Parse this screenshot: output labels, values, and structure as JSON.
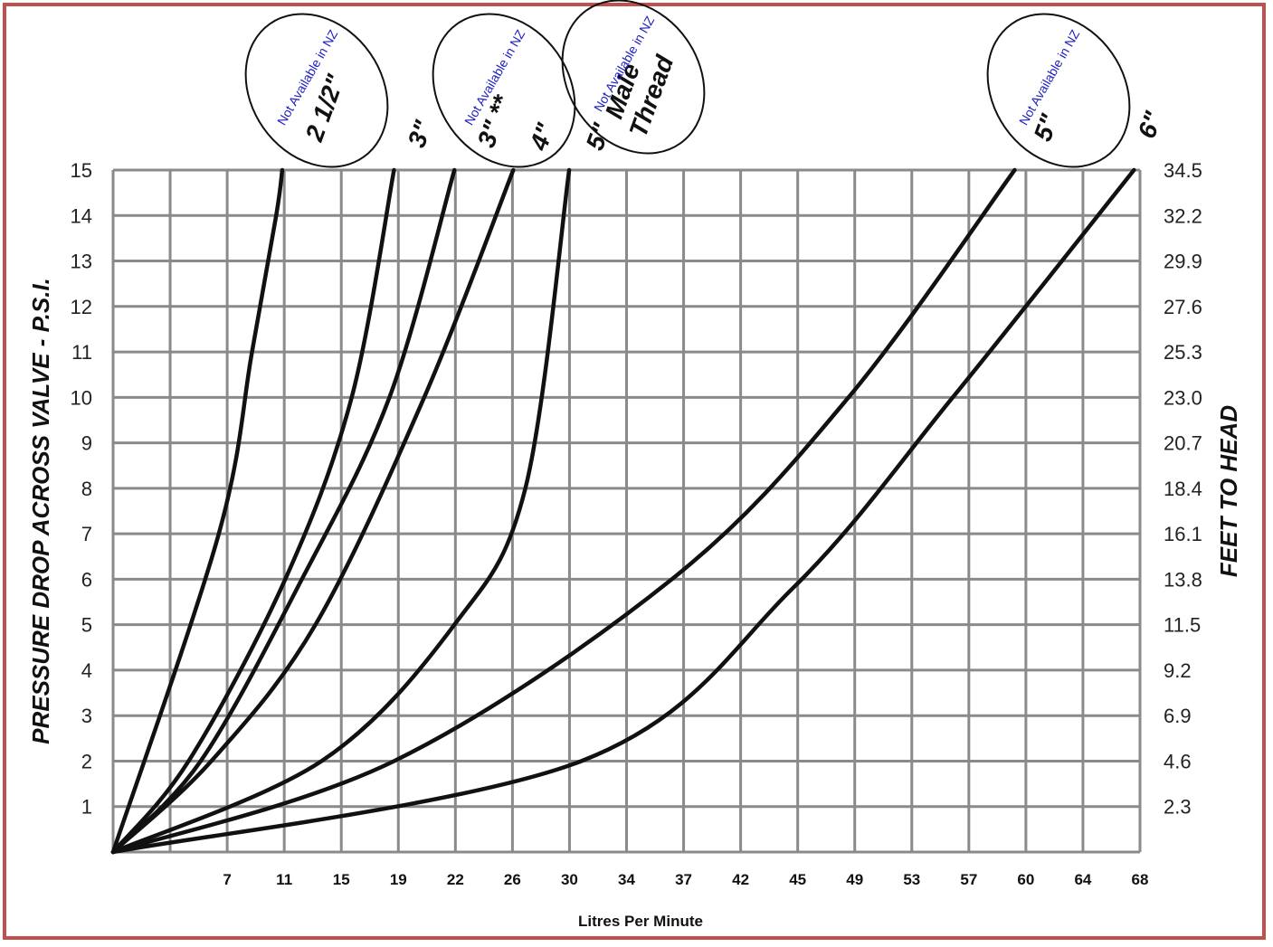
{
  "chart_data": {
    "type": "line",
    "title": "",
    "ylabel": "PRESSURE DROP ACROSS VALVE - P.S.I.",
    "ylabel_right": "FEET TO HEAD",
    "xlabel": "Litres Per Minute",
    "ylim": [
      0,
      15
    ],
    "xlim": [
      0,
      68
    ],
    "grid": true,
    "yticks": [
      "1",
      "2",
      "3",
      "4",
      "5",
      "6",
      "7",
      "8",
      "9",
      "10",
      "11",
      "12",
      "13",
      "14",
      "15"
    ],
    "yticks_right": [
      "2.3",
      "4.6",
      "6.9",
      "9.2",
      "11.5",
      "13.8",
      "16.1",
      "18.4",
      "20.7",
      "23.0",
      "25.3",
      "27.6",
      "29.9",
      "32.2",
      "34.5"
    ],
    "xticks": [
      "7",
      "11",
      "15",
      "19",
      "22",
      "26",
      "30",
      "34",
      "37",
      "42",
      "45",
      "49",
      "53",
      "57",
      "60",
      "64",
      "68"
    ],
    "series": [
      {
        "name": "2 1/2\"",
        "note": "Not Available in NZ",
        "x": [
          0,
          7.0,
          9.2,
          10.8,
          11.2
        ],
        "y": [
          0,
          7,
          11,
          14,
          15
        ]
      },
      {
        "name": "3\"",
        "note": "",
        "x": [
          0,
          5.0,
          11.4,
          15.8,
          18.6
        ],
        "y": [
          0,
          2,
          6,
          10,
          15
        ]
      },
      {
        "name": "3\" **",
        "note": "Not Available in NZ",
        "x": [
          0,
          5.8,
          12.5,
          18.3,
          22.6
        ],
        "y": [
          0,
          2,
          6,
          10,
          15
        ]
      },
      {
        "name": "4\"",
        "note": "",
        "x": [
          0,
          6.5,
          13.4,
          20.6,
          26.5
        ],
        "y": [
          0,
          2,
          5,
          10,
          15
        ]
      },
      {
        "name": "5\" Male Thread",
        "note": "Not Available in NZ",
        "x": [
          0,
          13.8,
          22.6,
          27.3,
          30.2
        ],
        "y": [
          0,
          2,
          5,
          8,
          15
        ]
      },
      {
        "name": "5\"",
        "note": "Not Available in NZ",
        "x": [
          0,
          18.6,
          37.0,
          48.7,
          59.7
        ],
        "y": [
          0,
          2,
          6,
          10,
          15
        ]
      },
      {
        "name": "6\"",
        "note": "",
        "x": [
          0,
          31.0,
          45.0,
          55.6,
          67.6
        ],
        "y": [
          0,
          2,
          5.8,
          10,
          15
        ]
      }
    ]
  },
  "colors": {
    "frame": "#c0504d",
    "note_text": "#1f1fbf",
    "grid": "#8a8a8a",
    "curve": "#111111"
  }
}
